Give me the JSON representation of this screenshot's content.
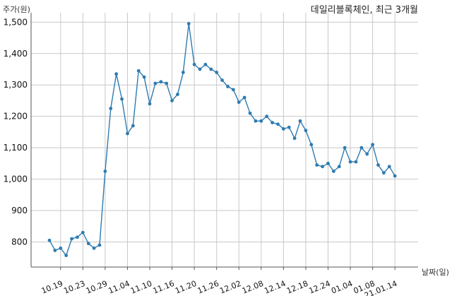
{
  "chart_data": {
    "type": "line",
    "title": "데일리블록체인, 최근 3개월",
    "ylabel": "주가(원)",
    "xlabel": "날짜(일)",
    "ylim": [
      720,
      1530
    ],
    "yticks": [
      800,
      900,
      "1,000",
      "1,100",
      "1,200",
      "1,300",
      "1,400",
      "1,500"
    ],
    "ytick_values": [
      800,
      900,
      1000,
      1100,
      1200,
      1300,
      1400,
      1500
    ],
    "xtick_labels": [
      "10.19",
      "10.23",
      "10.29",
      "11.04",
      "11.10",
      "11.16",
      "11.20",
      "11.26",
      "12.02",
      "12.08",
      "12.14",
      "12.18",
      "12.24",
      "01.04",
      "01.08",
      "21.01.14"
    ],
    "xtick_index": [
      2,
      6,
      10,
      14,
      18,
      22,
      26,
      30,
      34,
      38,
      42,
      46,
      50,
      54,
      58,
      62
    ],
    "grid": true,
    "series": [
      {
        "color": "#2e7bb0",
        "values": [
          805,
          773,
          780,
          757,
          810,
          815,
          830,
          795,
          780,
          790,
          1025,
          1225,
          1335,
          1255,
          1145,
          1170,
          1345,
          1325,
          1240,
          1305,
          1310,
          1305,
          1250,
          1270,
          1340,
          1495,
          1365,
          1350,
          1365,
          1350,
          1340,
          1315,
          1295,
          1285,
          1245,
          1260,
          1210,
          1185,
          1185,
          1200,
          1180,
          1175,
          1160,
          1165,
          1130,
          1185,
          1155,
          1110,
          1045,
          1040,
          1050,
          1025,
          1040,
          1100,
          1055,
          1055,
          1100,
          1080,
          1110,
          1045,
          1020,
          1040,
          1010
        ]
      }
    ]
  }
}
